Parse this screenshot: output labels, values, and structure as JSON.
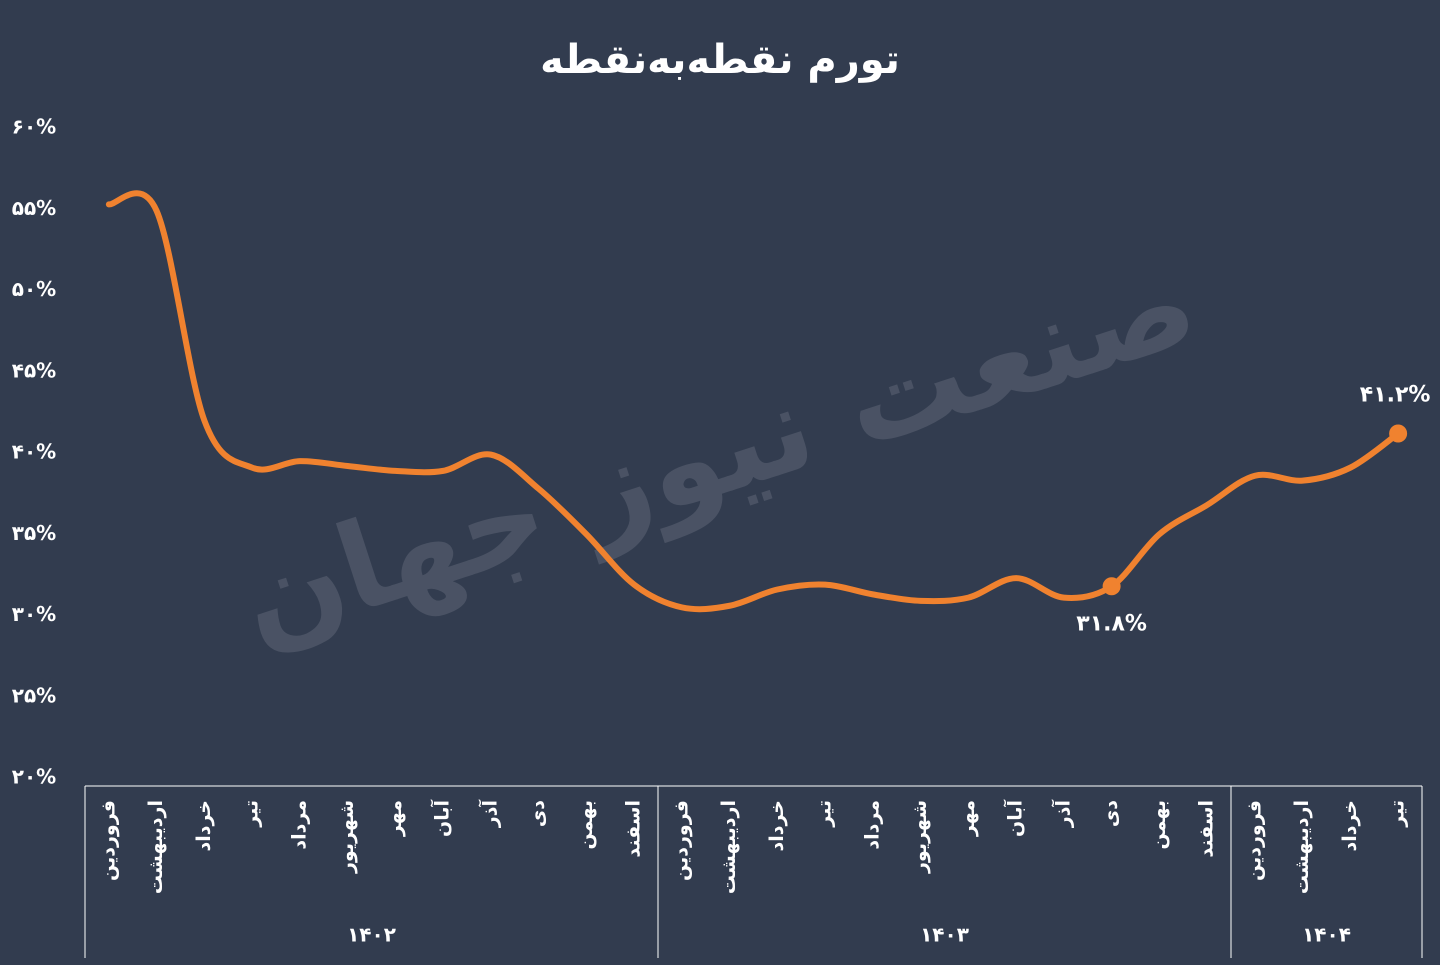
{
  "chart_data": {
    "type": "line",
    "title": "تورم نقطه‌به‌نقطه",
    "watermark": "صنعت نیوز جهان",
    "groups": [
      {
        "label": "۱۴۰۲",
        "categories": [
          "فروردین",
          "اردیبهشت",
          "خرداد",
          "تیر",
          "مرداد",
          "شهریور",
          "مهر",
          "آبان",
          "آذر",
          "دی",
          "بهمن",
          "اسفند"
        ]
      },
      {
        "label": "۱۴۰۳",
        "categories": [
          "فروردین",
          "اردیبهشت",
          "خرداد",
          "تیر",
          "مرداد",
          "شهریور",
          "مهر",
          "آبان",
          "آذر",
          "دی",
          "بهمن",
          "اسفند"
        ]
      },
      {
        "label": "۱۴۰۴",
        "categories": [
          "فروردین",
          "اردیبهشت",
          "خرداد",
          "تیر"
        ]
      }
    ],
    "series": [
      {
        "color": "#f0822f",
        "values": [
          55.3,
          54.9,
          42.0,
          39.1,
          39.5,
          39.2,
          38.9,
          38.9,
          39.9,
          37.8,
          35.0,
          31.9,
          30.5,
          30.6,
          31.6,
          31.9,
          31.3,
          30.9,
          31.1,
          32.3,
          31.1,
          31.8,
          35.0,
          36.8,
          38.6,
          38.3,
          39.1,
          41.2
        ],
        "value_labels": [
          null,
          null,
          null,
          null,
          null,
          null,
          null,
          null,
          null,
          null,
          null,
          null,
          null,
          null,
          null,
          null,
          null,
          null,
          null,
          null,
          null,
          "۳۱.۸%",
          null,
          null,
          null,
          null,
          null,
          "۴۱.۲%"
        ]
      }
    ],
    "ylim": [
      20,
      60
    ],
    "yticks": [
      {
        "value": 20,
        "label": "۲۰%"
      },
      {
        "value": 25,
        "label": "۲۵%"
      },
      {
        "value": 30,
        "label": "۳۰%"
      },
      {
        "value": 35,
        "label": "۳۵%"
      },
      {
        "value": 40,
        "label": "۴۰%"
      },
      {
        "value": 45,
        "label": "۴۵%"
      },
      {
        "value": 50,
        "label": "۵۰%"
      },
      {
        "value": 55,
        "label": "۵۵%"
      },
      {
        "value": 60,
        "label": "۶۰%"
      }
    ],
    "grid": false
  }
}
